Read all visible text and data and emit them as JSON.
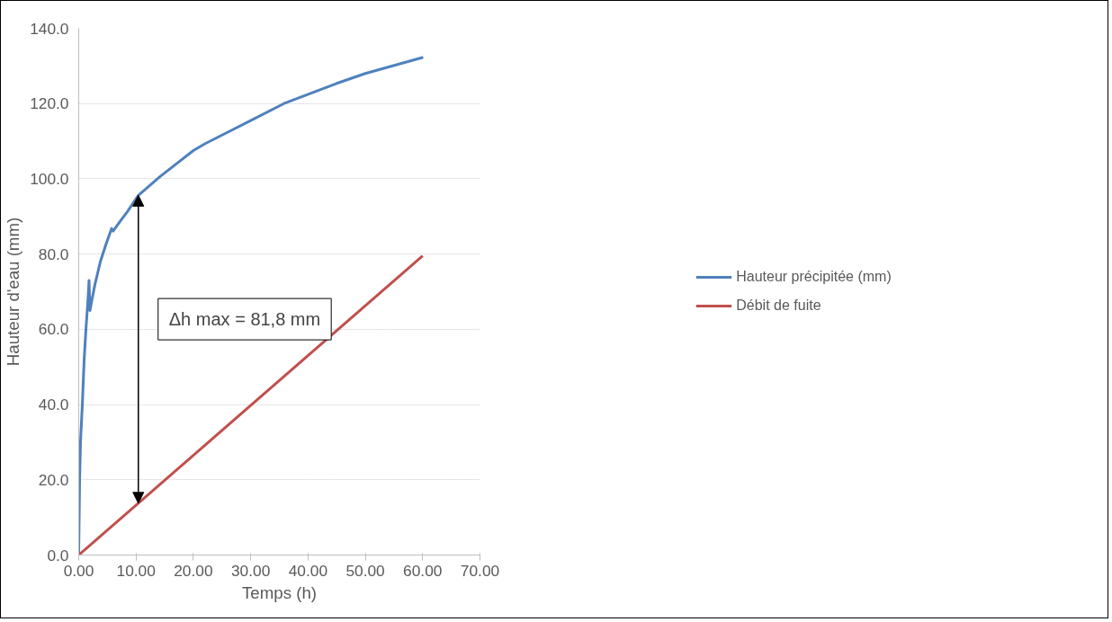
{
  "chart_data": {
    "type": "line",
    "xlabel": "Temps (h)",
    "ylabel": "Hauteur d'eau (mm)",
    "xlim": [
      0,
      70
    ],
    "ylim": [
      0,
      140
    ],
    "xticks": [
      {
        "value": 0,
        "label": "0.00"
      },
      {
        "value": 10,
        "label": "10.00"
      },
      {
        "value": 20,
        "label": "20.00"
      },
      {
        "value": 30,
        "label": "30.00"
      },
      {
        "value": 40,
        "label": "40.00"
      },
      {
        "value": 50,
        "label": "50.00"
      },
      {
        "value": 60,
        "label": "60.00"
      },
      {
        "value": 70,
        "label": "70.00"
      }
    ],
    "yticks": [
      {
        "value": 0,
        "label": "0.0"
      },
      {
        "value": 20,
        "label": "20.0"
      },
      {
        "value": 40,
        "label": "40.0"
      },
      {
        "value": 60,
        "label": "60.0"
      },
      {
        "value": 80,
        "label": "80.0"
      },
      {
        "value": 100,
        "label": "100.0"
      },
      {
        "value": 120,
        "label": "120.0"
      },
      {
        "value": 140,
        "label": "140.0"
      }
    ],
    "grid": "y",
    "legend": "right",
    "line_style": "solid",
    "marker": "none",
    "series": [
      {
        "name": "Hauteur précipitée (mm)",
        "color": "#4f81bd",
        "x": [
          0,
          0.16,
          0.31,
          0.63,
          0.95,
          1.26,
          1.58,
          1.8,
          1.96,
          2.2,
          2.84,
          3.78,
          4.73,
          5.74,
          6.0,
          7.26,
          8.5,
          10.4,
          14.2,
          20,
          22,
          30,
          35.8,
          44.9,
          50,
          60.1
        ],
        "values": [
          0,
          20,
          30,
          40,
          52,
          60,
          67,
          73,
          65,
          67,
          72,
          78,
          82.5,
          86.8,
          86.1,
          88.8,
          91.3,
          95.6,
          100.6,
          107.5,
          109.3,
          115.5,
          120,
          125.3,
          128,
          132.3
        ]
      },
      {
        "name": "Débit de fuite",
        "color": "#c0504d",
        "x": [
          0,
          60
        ],
        "values": [
          0,
          79.5
        ]
      }
    ],
    "annotations": [
      "Δh max = 81,8 mm"
    ]
  }
}
